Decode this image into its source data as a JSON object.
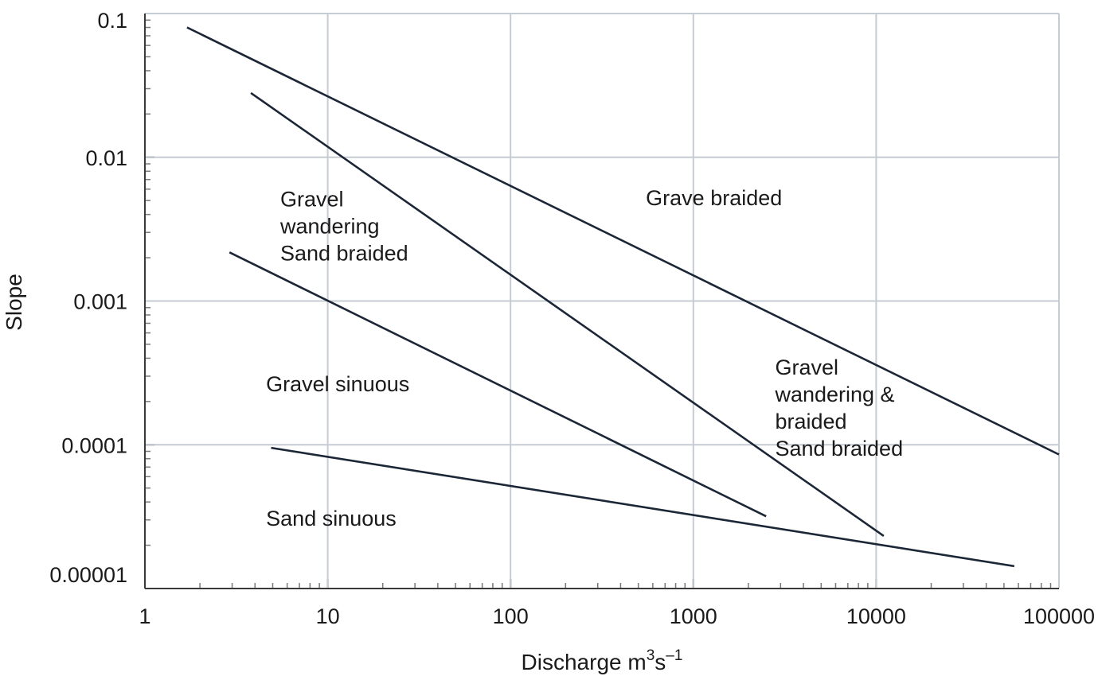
{
  "chart_data": {
    "type": "line",
    "xlabel": "Discharge m",
    "xlabel_sup1": "3",
    "xlabel_mid": "s",
    "xlabel_sup2": "–1",
    "ylabel": "Slope",
    "x_scale": "log",
    "y_scale": "log",
    "xlim": [
      1,
      100000
    ],
    "ylim": [
      1e-05,
      0.1
    ],
    "grid": true,
    "x_ticks": [
      1,
      10,
      100,
      1000,
      10000,
      100000
    ],
    "x_tick_labels": [
      "1",
      "10",
      "100",
      "1000",
      "10000",
      "100000"
    ],
    "y_ticks": [
      1e-05,
      0.0001,
      0.001,
      0.01,
      0.1
    ],
    "y_tick_labels": [
      "0.00001",
      "0.0001",
      "0.001",
      "0.01",
      "0.1"
    ],
    "series": [
      {
        "points": [
          [
            1.7,
            0.08
          ],
          [
            100000,
            8.56e-05
          ]
        ]
      },
      {
        "points": [
          [
            3.8,
            0.028
          ],
          [
            11000,
            2.32e-05
          ]
        ]
      },
      {
        "points": [
          [
            2.9,
            0.00218
          ],
          [
            2500,
            3.18e-05
          ]
        ]
      },
      {
        "points": [
          [
            4.9,
            9.52e-05
          ],
          [
            57000,
            1.43e-05
          ]
        ]
      }
    ],
    "annotations": [
      {
        "lines": [
          "Gravel",
          "wandering",
          "Sand braided"
        ],
        "x": 5.5,
        "y": 0.00455
      },
      {
        "lines": [
          "Grave braided"
        ],
        "x": 550,
        "y": 0.00465
      },
      {
        "lines": [
          "Gravel",
          "wandering &",
          "braided",
          "Sand braided"
        ],
        "x": 2800,
        "y": 0.000307
      },
      {
        "lines": [
          "Gravel sinuous"
        ],
        "x": 4.6,
        "y": 0.000235
      },
      {
        "lines": [
          "Sand sinuous"
        ],
        "x": 4.6,
        "y": 2.73e-05
      }
    ]
  }
}
